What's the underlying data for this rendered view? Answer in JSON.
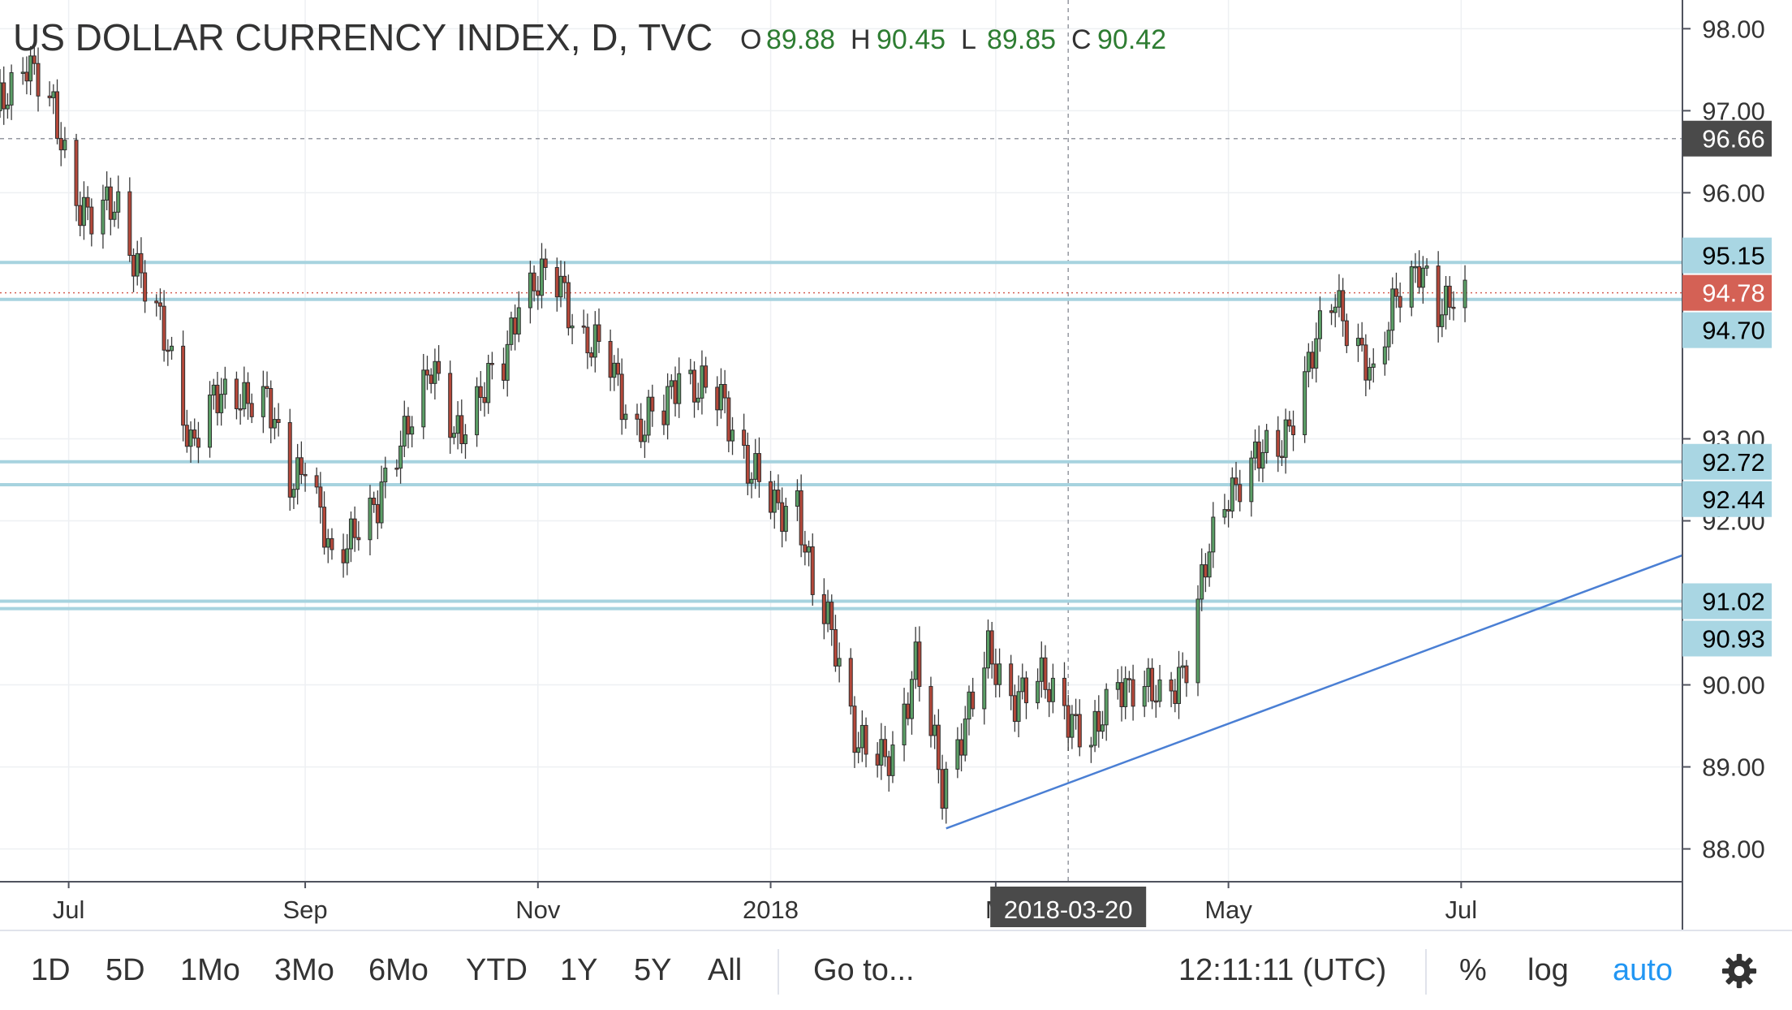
{
  "header": {
    "title": "US DOLLAR CURRENCY INDEX, D, TVC",
    "ohlc": [
      {
        "label": "O",
        "value": "89.88"
      },
      {
        "label": "H",
        "value": "90.45"
      },
      {
        "label": "L",
        "value": "89.85"
      },
      {
        "label": "C",
        "value": "90.42"
      }
    ]
  },
  "chart_data": {
    "type": "candlestick",
    "title": "US DOLLAR CURRENCY INDEX, D, TVC",
    "y_ticks": [
      "88.00",
      "89.00",
      "90.00",
      "92.00",
      "93.00",
      "96.00",
      "97.00",
      "98.00"
    ],
    "ylim": [
      87.6,
      98.35
    ],
    "x_ticks": [
      "Jul",
      "Sep",
      "Nov",
      "2018",
      "M",
      "May",
      "Jul"
    ],
    "x_range": [
      "2017-06-13",
      "2018-08-28"
    ],
    "crosshair": {
      "date": "2018-03-20",
      "date_label": "2018-03-20",
      "price_label": "96.66",
      "price": 96.66
    },
    "last_price_label": "94.78",
    "last_price": 94.78,
    "horizontal_levels": [
      {
        "label": "95.15",
        "value": 95.15
      },
      {
        "label": "94.70",
        "value": 94.7
      },
      {
        "label": "92.72",
        "value": 92.72
      },
      {
        "label": "92.44",
        "value": 92.44
      },
      {
        "label": "91.02",
        "value": 91.02
      },
      {
        "label": "90.93",
        "value": 90.93
      }
    ],
    "trendline": {
      "start": {
        "date": "2018-02-16",
        "value": 88.25
      },
      "end": {
        "date": "2018-08-28",
        "value": 91.58
      }
    },
    "close_path": [
      [
        "2017-06-13",
        97.0
      ],
      [
        "2017-06-20",
        97.7
      ],
      [
        "2017-06-27",
        96.9
      ],
      [
        "2017-07-03",
        96.0
      ],
      [
        "2017-07-07",
        95.7
      ],
      [
        "2017-07-14",
        95.8
      ],
      [
        "2017-07-21",
        94.9
      ],
      [
        "2017-07-28",
        93.9
      ],
      [
        "2017-08-02",
        93.0
      ],
      [
        "2017-08-08",
        93.4
      ],
      [
        "2017-08-15",
        93.6
      ],
      [
        "2017-08-22",
        93.4
      ],
      [
        "2017-08-28",
        92.5
      ],
      [
        "2017-09-01",
        92.8
      ],
      [
        "2017-09-08",
        91.4
      ],
      [
        "2017-09-14",
        92.0
      ],
      [
        "2017-09-20",
        92.1
      ],
      [
        "2017-09-28",
        93.3
      ],
      [
        "2017-10-04",
        93.8
      ],
      [
        "2017-10-10",
        93.1
      ],
      [
        "2017-10-17",
        93.5
      ],
      [
        "2017-10-23",
        93.9
      ],
      [
        "2017-10-27",
        94.8
      ],
      [
        "2017-11-03",
        94.9
      ],
      [
        "2017-11-07",
        94.9
      ],
      [
        "2017-11-13",
        94.2
      ],
      [
        "2017-11-20",
        93.9
      ],
      [
        "2017-11-27",
        93.1
      ],
      [
        "2017-12-04",
        93.3
      ],
      [
        "2017-12-08",
        93.9
      ],
      [
        "2017-12-13",
        93.6
      ],
      [
        "2017-12-20",
        93.4
      ],
      [
        "2017-12-27",
        92.6
      ],
      [
        "2018-01-02",
        92.1
      ],
      [
        "2018-01-08",
        92.3
      ],
      [
        "2018-01-12",
        91.1
      ],
      [
        "2018-01-18",
        90.5
      ],
      [
        "2018-01-24",
        89.3
      ],
      [
        "2018-01-30",
        89.0
      ],
      [
        "2018-02-02",
        89.2
      ],
      [
        "2018-02-08",
        90.3
      ],
      [
        "2018-02-15",
        88.7
      ],
      [
        "2018-02-20",
        89.5
      ],
      [
        "2018-02-27",
        90.3
      ],
      [
        "2018-03-05",
        89.9
      ],
      [
        "2018-03-12",
        90.0
      ],
      [
        "2018-03-19",
        89.8
      ],
      [
        "2018-03-26",
        89.2
      ],
      [
        "2018-04-02",
        90.1
      ],
      [
        "2018-04-09",
        89.9
      ],
      [
        "2018-04-13",
        89.8
      ],
      [
        "2018-04-20",
        90.3
      ],
      [
        "2018-04-26",
        91.6
      ],
      [
        "2018-05-01",
        92.4
      ],
      [
        "2018-05-08",
        92.7
      ],
      [
        "2018-05-14",
        92.9
      ],
      [
        "2018-05-21",
        93.7
      ],
      [
        "2018-05-29",
        94.8
      ],
      [
        "2018-06-04",
        94.1
      ],
      [
        "2018-06-08",
        93.6
      ],
      [
        "2018-06-14",
        94.9
      ],
      [
        "2018-06-20",
        95.0
      ],
      [
        "2018-06-25",
        94.5
      ],
      [
        "2018-06-29",
        94.9
      ],
      [
        "2018-07-02",
        94.8
      ]
    ]
  },
  "toolbar": {
    "ranges": [
      "1D",
      "5D",
      "1Mo",
      "3Mo",
      "6Mo",
      "YTD",
      "1Y",
      "5Y",
      "All"
    ],
    "goto": "Go to...",
    "time": "12:11:11 (UTC)",
    "percent": "%",
    "log": "log",
    "auto": "auto",
    "settings_icon": "gear-icon"
  },
  "colors": {
    "bull_fill": "#5b9f66",
    "bear_fill": "#b5483a",
    "level_line": "#a7d3df",
    "level_label_bg": "#a9d6e3",
    "trendline": "#4a7fd4",
    "last_price_bg": "#d46155",
    "crosshair_bg": "#4a4a4a"
  }
}
